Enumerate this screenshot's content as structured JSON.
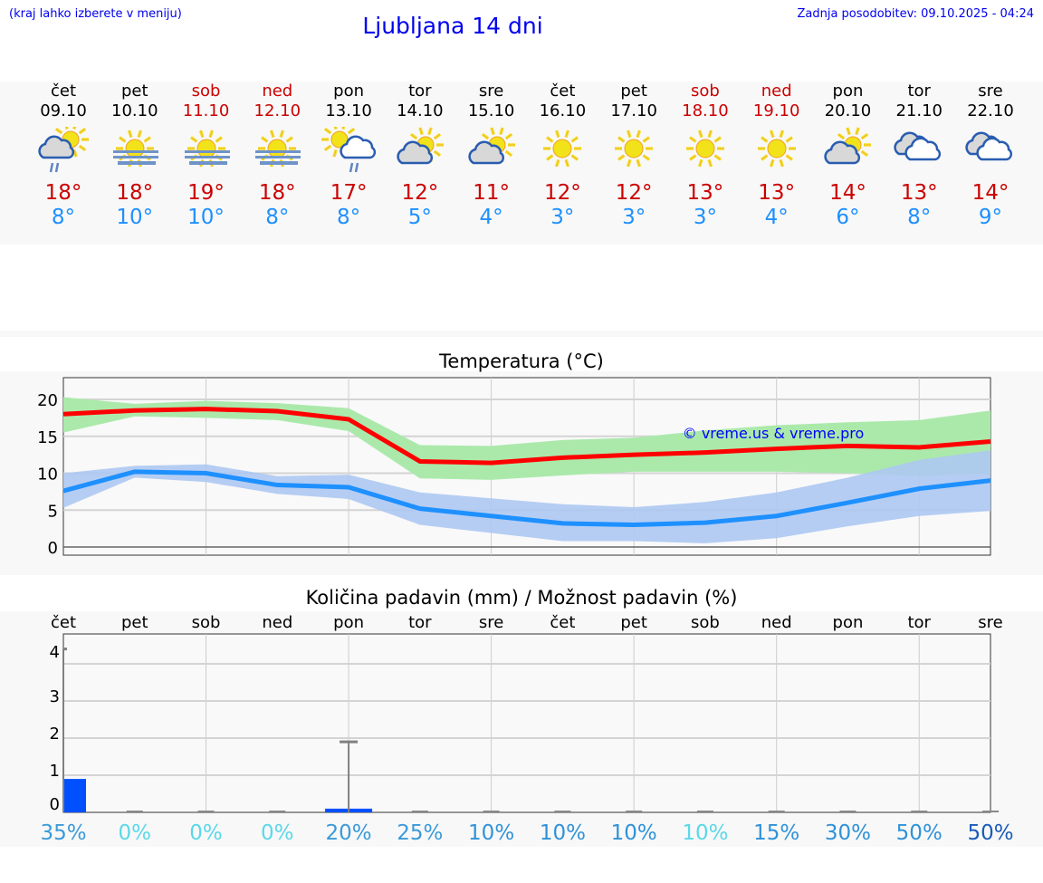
{
  "header": {
    "hint": "(kraj lahko izberete v meniju)",
    "title": "Ljubljana 14 dni",
    "updated": "Zadnja posodobitev: 09.10.2025 - 04:24"
  },
  "days": [
    {
      "name": "čet",
      "date": "09.10",
      "weekend": false,
      "icon": "partly-cloudy-rain-icon",
      "max": "18°",
      "min": "8°"
    },
    {
      "name": "pet",
      "date": "10.10",
      "weekend": false,
      "icon": "sun-fog-icon",
      "max": "18°",
      "min": "10°"
    },
    {
      "name": "sob",
      "date": "11.10",
      "weekend": true,
      "icon": "sun-fog-icon",
      "max": "19°",
      "min": "10°"
    },
    {
      "name": "ned",
      "date": "12.10",
      "weekend": true,
      "icon": "sun-fog-icon",
      "max": "18°",
      "min": "8°"
    },
    {
      "name": "pon",
      "date": "13.10",
      "weekend": false,
      "icon": "sun-cloud-rain-icon",
      "max": "17°",
      "min": "8°"
    },
    {
      "name": "tor",
      "date": "14.10",
      "weekend": false,
      "icon": "partly-cloudy-icon",
      "max": "12°",
      "min": "5°"
    },
    {
      "name": "sre",
      "date": "15.10",
      "weekend": false,
      "icon": "partly-cloudy-icon",
      "max": "11°",
      "min": "4°"
    },
    {
      "name": "čet",
      "date": "16.10",
      "weekend": false,
      "icon": "sun-icon",
      "max": "12°",
      "min": "3°"
    },
    {
      "name": "pet",
      "date": "17.10",
      "weekend": false,
      "icon": "sun-icon",
      "max": "12°",
      "min": "3°"
    },
    {
      "name": "sob",
      "date": "18.10",
      "weekend": true,
      "icon": "sun-icon",
      "max": "13°",
      "min": "3°"
    },
    {
      "name": "ned",
      "date": "19.10",
      "weekend": true,
      "icon": "sun-icon",
      "max": "13°",
      "min": "4°"
    },
    {
      "name": "pon",
      "date": "20.10",
      "weekend": false,
      "icon": "partly-cloudy-icon",
      "max": "14°",
      "min": "6°"
    },
    {
      "name": "tor",
      "date": "21.10",
      "weekend": false,
      "icon": "cloudy-icon",
      "max": "13°",
      "min": "8°"
    },
    {
      "name": "sre",
      "date": "22.10",
      "weekend": false,
      "icon": "cloudy-icon",
      "max": "14°",
      "min": "9°"
    }
  ],
  "colors": {
    "max": "#ff0000",
    "min": "#1e90ff",
    "maxBand": "#abe9ab",
    "minBand": "#adc8f2",
    "bar": "#0050ff"
  },
  "chart_data": [
    {
      "type": "line",
      "title": "Temperatura (°C)",
      "ylim": [
        -1,
        23
      ],
      "yticks": [
        0,
        5,
        10,
        15,
        20
      ],
      "watermark": "© vreme.us & vreme.pro",
      "x": [
        "09.10",
        "10.10",
        "11.10",
        "12.10",
        "13.10",
        "14.10",
        "15.10",
        "16.10",
        "17.10",
        "18.10",
        "19.10",
        "20.10",
        "21.10",
        "22.10"
      ],
      "series": [
        {
          "name": "max",
          "values": [
            18,
            18.5,
            18.7,
            18.4,
            17.3,
            11.6,
            11.4,
            12.1,
            12.5,
            12.8,
            13.3,
            13.7,
            13.5,
            14.3
          ],
          "band_low": [
            15.5,
            17.7,
            17.5,
            17.2,
            15.7,
            9.3,
            9.1,
            9.7,
            10.2,
            10.2,
            10.2,
            10.0,
            9.6,
            10.0
          ],
          "band_high": [
            20.3,
            19.4,
            19.8,
            19.5,
            18.8,
            13.8,
            13.7,
            14.5,
            14.8,
            15.8,
            16.5,
            16.9,
            17.2,
            18.5
          ]
        },
        {
          "name": "min",
          "values": [
            7.6,
            10.2,
            10,
            8.4,
            8.1,
            5.2,
            4.2,
            3.2,
            3,
            3.3,
            4.2,
            6,
            7.9,
            9
          ],
          "band_low": [
            5.3,
            9.4,
            8.8,
            7.2,
            6.5,
            3,
            1.9,
            0.8,
            0.8,
            0.5,
            1.2,
            2.8,
            4.2,
            4.9
          ],
          "band_high": [
            10,
            11,
            11.2,
            9.6,
            9.8,
            7.4,
            6.6,
            5.8,
            5.4,
            6.1,
            7.4,
            9.4,
            11.8,
            13.1
          ]
        }
      ]
    },
    {
      "type": "bar",
      "title": "Količina padavin (mm) / Možnost padavin (%)",
      "ylim": [
        0,
        4.5
      ],
      "yticks": [
        0,
        1,
        2,
        3,
        4
      ],
      "categories": [
        "čet",
        "pet",
        "sob",
        "ned",
        "pon",
        "tor",
        "sre",
        "čet",
        "pet",
        "sob",
        "ned",
        "pon",
        "tor",
        "sre"
      ],
      "values": [
        0.9,
        0,
        0,
        0,
        0.1,
        0,
        0,
        0,
        0,
        0,
        0,
        0,
        0,
        0
      ],
      "error_high": [
        4.4,
        0,
        0,
        0,
        1.9,
        0,
        0,
        0,
        0,
        0,
        0,
        0,
        0,
        0
      ],
      "probability": [
        "35%",
        "0%",
        "0%",
        "0%",
        "20%",
        "25%",
        "10%",
        "10%",
        "10%",
        "10%",
        "15%",
        "30%",
        "50%",
        "50%"
      ],
      "probability_colors": [
        "#3a9ad9",
        "#5ad8e8",
        "#5ad8e8",
        "#5ad8e8",
        "#3a9ad9",
        "#3a9ad9",
        "#2f92d8",
        "#2f92d8",
        "#2f92d8",
        "#5ad8e8",
        "#2f92d8",
        "#2f92d8",
        "#2f92d8",
        "#1a5cb8"
      ]
    }
  ]
}
